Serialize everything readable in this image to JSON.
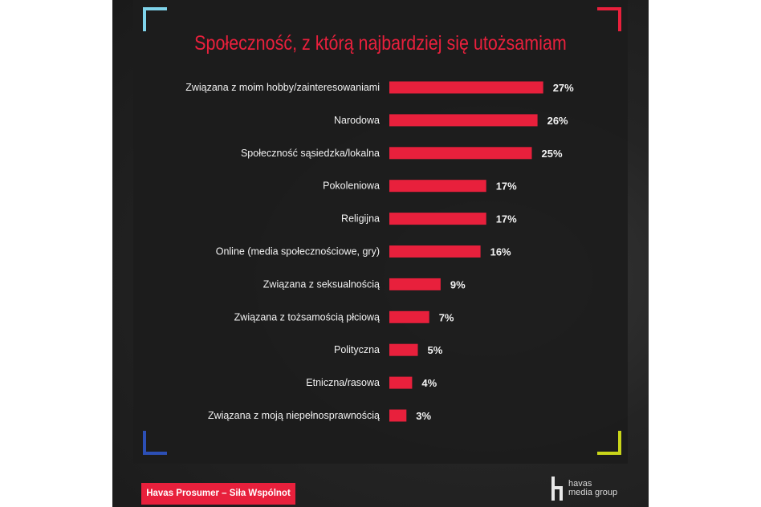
{
  "chart_data": {
    "type": "bar",
    "orientation": "horizontal",
    "title": "Społeczność, z którą najbardziej się utożsamiam",
    "categories": [
      "Związana z moim hobby/zainteresowaniami",
      "Narodowa",
      "Społeczność sąsiedzka/lokalna",
      "Pokoleniowa",
      "Religijna",
      "Online (media społecznościowe, gry)",
      "Związana z seksualnością",
      "Związana z tożsamością płciową",
      "Polityczna",
      "Etniczna/rasowa",
      "Związana z moją niepełnosprawnością"
    ],
    "values": [
      27,
      26,
      25,
      17,
      17,
      16,
      9,
      7,
      5,
      4,
      3
    ],
    "value_suffix": "%",
    "bar_color": "#e8203c",
    "grid": false,
    "legend": "none"
  },
  "footer": {
    "tag_label": "Havas Prosumer – Siła Wspólnot",
    "logo_line1": "havas",
    "logo_line2": "media group"
  },
  "colors": {
    "accent": "#e8203c",
    "corner_top_left": "#7fd3ea",
    "corner_top_right": "#e8203c",
    "corner_bottom_left": "#2c4fb5",
    "corner_bottom_right": "#c9d51a"
  },
  "icons": {
    "logo": "havas-h-logo-icon"
  }
}
